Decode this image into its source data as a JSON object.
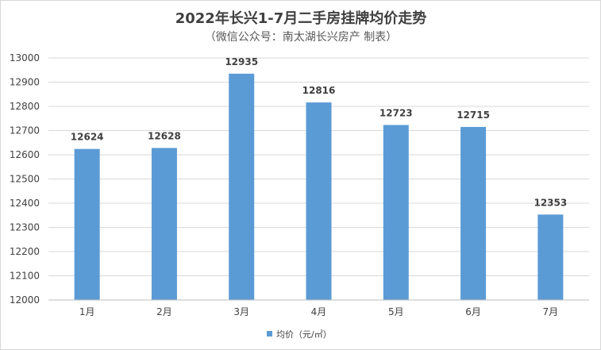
{
  "chart_data": {
    "type": "bar",
    "title": "2022年长兴1-7月二手房挂牌均价走势",
    "subtitle": "（微信公众号：南太湖长兴房产 制表）",
    "categories": [
      "1月",
      "2月",
      "3月",
      "4月",
      "5月",
      "6月",
      "7月"
    ],
    "series": [
      {
        "name": "均价（元/㎡）",
        "values": [
          12624,
          12628,
          12935,
          12816,
          12723,
          12715,
          12353
        ],
        "color": "#5b9bd5"
      }
    ],
    "ylim": [
      12000,
      13000
    ],
    "yticks": [
      12000,
      12100,
      12200,
      12300,
      12400,
      12500,
      12600,
      12700,
      12800,
      12900,
      13000
    ],
    "grid": true,
    "legend": "bottom",
    "gridline_color": "#d9d9d9",
    "axis_color": "#bfbfbf"
  }
}
